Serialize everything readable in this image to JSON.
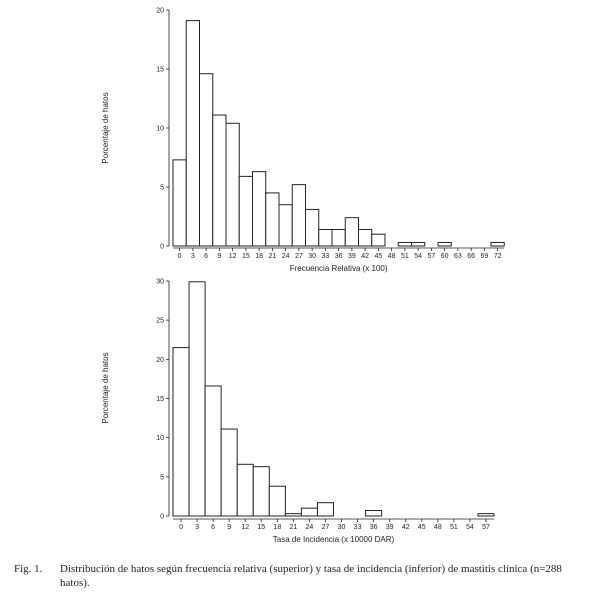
{
  "chart_data": [
    {
      "type": "bar",
      "title": "",
      "xlabel": "Frecuencia Relativa (x 100)",
      "ylabel": "Porcentaje de hatos",
      "ylim": [
        0,
        20
      ],
      "yticks": [
        0,
        5,
        10,
        15,
        20
      ],
      "categories": [
        "0",
        "3",
        "6",
        "9",
        "12",
        "15",
        "18",
        "21",
        "24",
        "27",
        "30",
        "33",
        "36",
        "39",
        "42",
        "45",
        "48",
        "51",
        "54",
        "57",
        "60",
        "63",
        "66",
        "69",
        "72"
      ],
      "values": [
        7.3,
        19.1,
        14.6,
        11.1,
        10.4,
        5.9,
        6.3,
        4.5,
        3.5,
        5.2,
        3.1,
        1.4,
        1.4,
        2.4,
        1.4,
        1.0,
        0,
        0.3,
        0.3,
        0,
        0.3,
        0,
        0,
        0,
        0.3
      ]
    },
    {
      "type": "bar",
      "title": "",
      "xlabel": "Tasa de Incidencia (x 10000 DAR)",
      "ylabel": "Porcentaje de hatos",
      "ylim": [
        0,
        30
      ],
      "yticks": [
        0,
        5,
        10,
        15,
        20,
        25,
        30
      ],
      "categories": [
        "0",
        "3",
        "6",
        "9",
        "12",
        "15",
        "18",
        "21",
        "24",
        "27",
        "30",
        "33",
        "36",
        "39",
        "42",
        "45",
        "48",
        "51",
        "54",
        "57"
      ],
      "values": [
        21.5,
        29.9,
        16.6,
        11.1,
        6.6,
        6.3,
        3.8,
        0.3,
        1.0,
        1.7,
        0,
        0,
        0.7,
        0,
        0,
        0,
        0,
        0,
        0,
        0.3
      ]
    }
  ],
  "caption": {
    "label": "Fig. 1.",
    "text": "Distribución de hatos según frecuencia relativa (superior) y tasa de incidencia (inferior)  de mastitis clínica (n=288 hatos)."
  }
}
